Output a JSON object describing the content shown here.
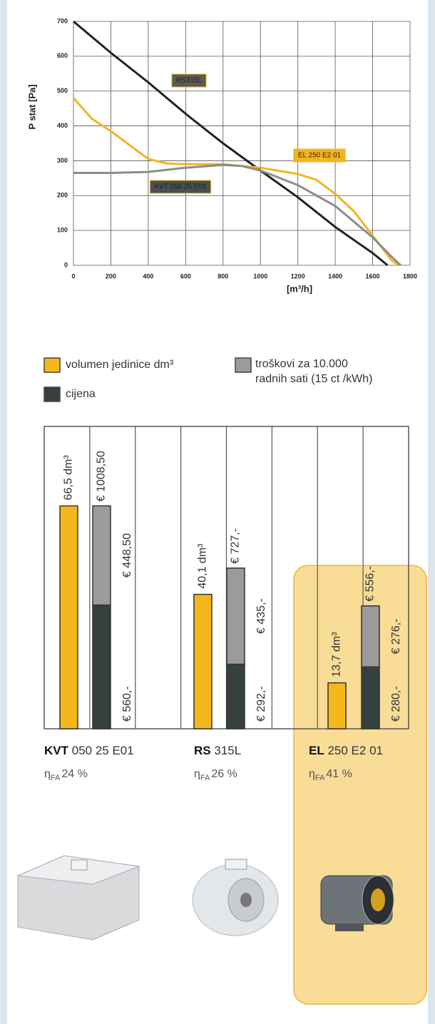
{
  "chart_data": [
    {
      "type": "line",
      "y_label": "P stat [Pa]",
      "x_label": "[m³/h]",
      "xlim": [
        0,
        1800
      ],
      "xticks": [
        0,
        200,
        400,
        600,
        800,
        1000,
        1200,
        1400,
        1600,
        1800
      ],
      "ylim": [
        0,
        700
      ],
      "yticks": [
        0,
        100,
        200,
        300,
        400,
        500,
        600,
        700
      ],
      "grid": true,
      "series": [
        {
          "name": "RS315L",
          "color": "#222222",
          "x": [
            0,
            200,
            400,
            600,
            800,
            1000,
            1200,
            1400,
            1600,
            1680
          ],
          "values": [
            700,
            610,
            525,
            435,
            350,
            272,
            195,
            110,
            35,
            0
          ]
        },
        {
          "name": "EL 250 E2 01",
          "color": "#f2b51e",
          "x": [
            0,
            100,
            200,
            300,
            400,
            500,
            600,
            800,
            1000,
            1200,
            1300,
            1400,
            1500,
            1600,
            1700,
            1740
          ],
          "values": [
            480,
            420,
            385,
            345,
            305,
            292,
            290,
            290,
            280,
            262,
            245,
            205,
            155,
            85,
            15,
            0
          ]
        },
        {
          "name": "KVT 050 25 E01",
          "color": "#8c8c8c",
          "x": [
            0,
            200,
            400,
            600,
            800,
            900,
            1000,
            1200,
            1400,
            1600,
            1700,
            1750
          ],
          "values": [
            265,
            265,
            268,
            280,
            288,
            285,
            272,
            230,
            170,
            80,
            25,
            0
          ]
        }
      ]
    },
    {
      "type": "stacked_bar",
      "categories": [
        "KVT",
        "RS",
        "EL"
      ],
      "models": [
        "050 25 E01",
        "315L",
        "250 E2 01"
      ],
      "efficiency_symbol": "η",
      "efficiency_subscript": "FA",
      "efficiency_labels": [
        "24 %",
        "26 %",
        "41 %"
      ],
      "series": [
        {
          "name": "volumen jedinice dm³",
          "color": "#f5b81c",
          "values": [
            66.5,
            40.1,
            13.7
          ],
          "value_labels": [
            "66,5 dm³",
            "40,1 dm³",
            "13,7 dm³"
          ]
        },
        {
          "name": "cijena",
          "color": "#36403f",
          "values": [
            560,
            292,
            280
          ],
          "value_labels": [
            "€ 560,-",
            "€ 292,-",
            "€ 280,-"
          ]
        },
        {
          "name": "troškovi za 10.000 radnih sati (15 ct /kWh)",
          "color": "#9b9b9b",
          "values": [
            448.5,
            435,
            276
          ],
          "value_labels": [
            "€ 448,50",
            "€ 435,-",
            "€ 276,-"
          ]
        }
      ],
      "totals": {
        "values": [
          1008.5,
          727,
          556
        ],
        "value_labels": [
          "€ 1008,50",
          "€ 727,-",
          "€ 556,-"
        ]
      }
    }
  ]
}
